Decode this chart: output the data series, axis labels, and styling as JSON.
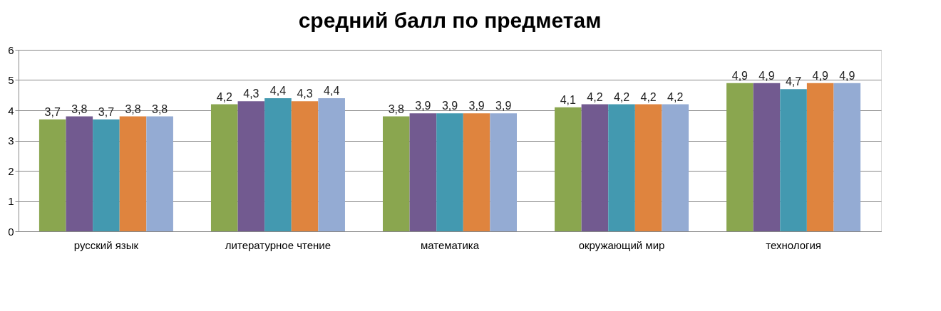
{
  "chart_data": {
    "type": "bar",
    "title": "средний балл по предметам",
    "categories": [
      "русский язык",
      "литературное чтение",
      "математика",
      "окружающий мир",
      "технология"
    ],
    "series": [
      {
        "color": "#8aa64f",
        "values": [
          3.7,
          4.2,
          3.8,
          4.1,
          4.9
        ],
        "value_labels": [
          "3,7",
          "4,2",
          "3,8",
          "4,1",
          "4,9"
        ]
      },
      {
        "color": "#725a90",
        "values": [
          3.8,
          4.3,
          3.9,
          4.2,
          4.9
        ],
        "value_labels": [
          "3,8",
          "4,3",
          "3,9",
          "4,2",
          "4,9"
        ]
      },
      {
        "color": "#4399b0",
        "values": [
          3.7,
          4.4,
          3.9,
          4.2,
          4.7
        ],
        "value_labels": [
          "3,7",
          "4,4",
          "3,9",
          "4,2",
          "4,7"
        ]
      },
      {
        "color": "#df843e",
        "values": [
          3.8,
          4.3,
          3.9,
          4.2,
          4.9
        ],
        "value_labels": [
          "3,8",
          "4,3",
          "3,9",
          "4,2",
          "4,9"
        ]
      },
      {
        "color": "#94abd3",
        "values": [
          3.8,
          4.4,
          3.9,
          4.2,
          4.9
        ],
        "value_labels": [
          "3,8",
          "4,4",
          "3,9",
          "4,2",
          "4,9"
        ]
      }
    ],
    "ylim": [
      0,
      6
    ],
    "yticks": [
      0,
      1,
      2,
      3,
      4,
      5,
      6
    ],
    "grid": "y"
  }
}
